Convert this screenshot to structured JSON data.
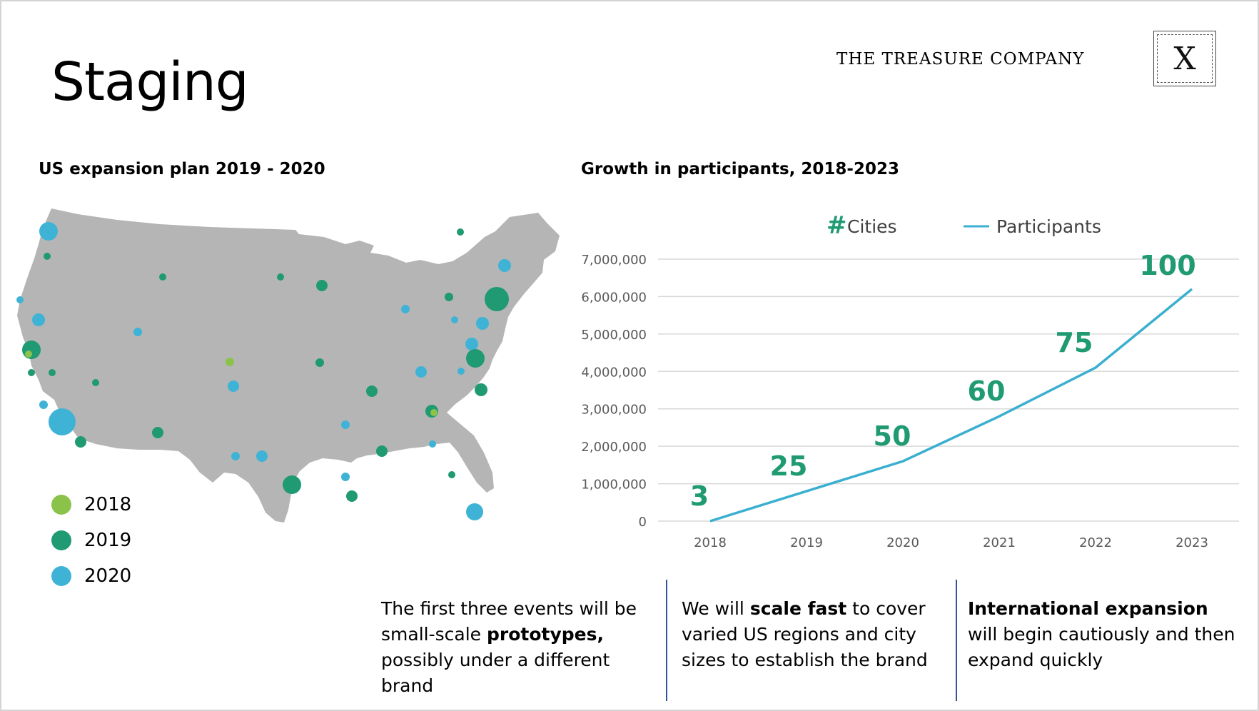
{
  "slide": {
    "title": "Staging",
    "brand": "THE TREASURE COMPANY",
    "logo_letter": "X"
  },
  "map_section": {
    "title": "US expansion plan 2019 - 2020",
    "legend": [
      {
        "label": "2018",
        "color": "#8bc34a"
      },
      {
        "label": "2019",
        "color": "#1f9a72"
      },
      {
        "label": "2020",
        "color": "#3fb3d6"
      }
    ]
  },
  "chart_section": {
    "title": "Growth in participants, 2018-2023"
  },
  "chart_data": {
    "type": "line",
    "title": "Growth in participants, 2018-2023",
    "categories": [
      "2018",
      "2019",
      "2020",
      "2021",
      "2022",
      "2023"
    ],
    "series": [
      {
        "name": "Participants",
        "values": [
          0,
          800000,
          1600000,
          2800000,
          4100000,
          6200000
        ],
        "color": "#3aafd0"
      }
    ],
    "cities_label": "Cities",
    "cities_symbol": "#",
    "cities_values": [
      "3",
      "25",
      "50",
      "60",
      "75",
      "100"
    ],
    "cities_color": "#1f9a72",
    "yticks": [
      "0",
      "1,000,000",
      "2,000,000",
      "3,000,000",
      "4,000,000",
      "5,000,000",
      "6,000,000",
      "7,000,000"
    ],
    "ylim": [
      0,
      7000000
    ],
    "grid": true,
    "legend_position": "top"
  },
  "notes": [
    {
      "parts": [
        {
          "text": "The first three events will be small-scale ",
          "bold": false
        },
        {
          "text": "prototypes,",
          "bold": true
        },
        {
          "text": " possibly under a different brand",
          "bold": false
        }
      ]
    },
    {
      "parts": [
        {
          "text": "We will ",
          "bold": false
        },
        {
          "text": "scale fast",
          "bold": true
        },
        {
          "text": " to cover varied US regions and city sizes to establish the brand",
          "bold": false
        }
      ]
    },
    {
      "parts": [
        {
          "text": "International expansion",
          "bold": true
        },
        {
          "text": " will begin cautiously and then expand quickly",
          "bold": false
        }
      ]
    }
  ],
  "colors": {
    "map_fill": "#b5b5b5",
    "divider": "#2f5597",
    "grid": "#d9d9d9",
    "axis_text": "#595959"
  }
}
